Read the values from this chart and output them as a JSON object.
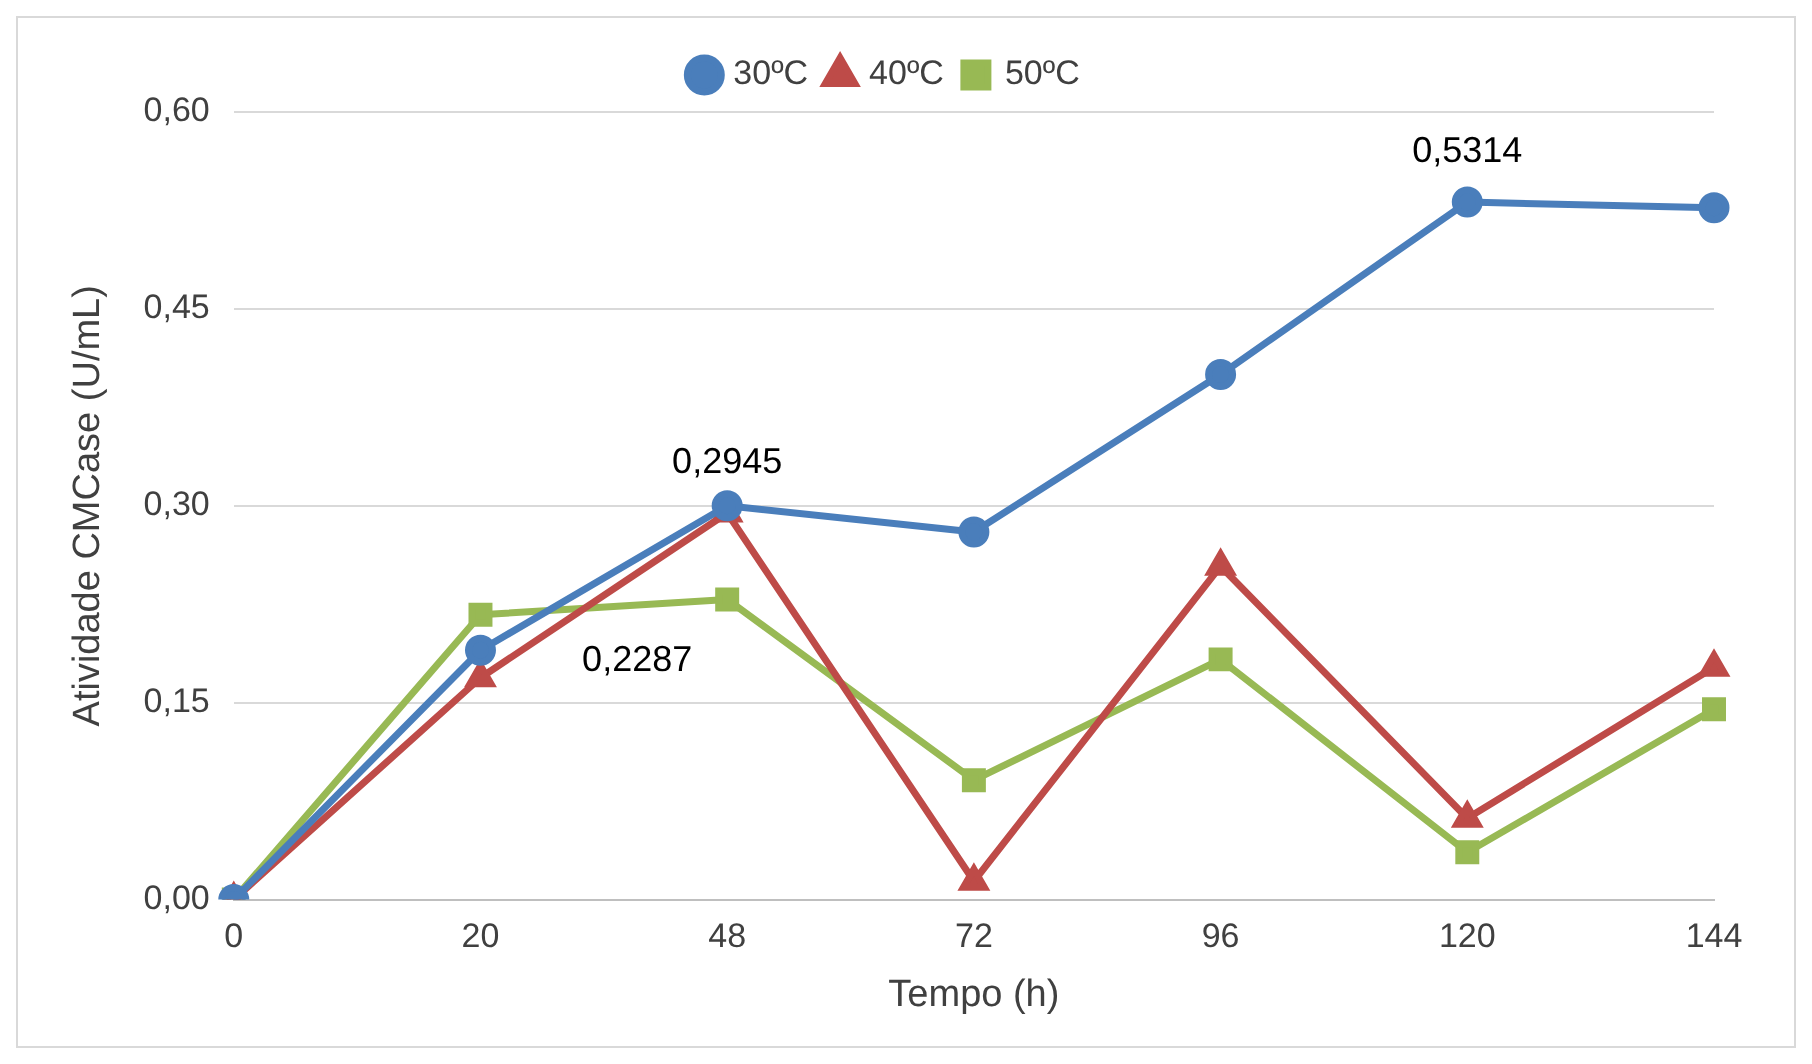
{
  "chart_data": {
    "type": "line",
    "xlabel": "Tempo (h)",
    "ylabel": "Atividade CMCase (U/mL)",
    "categories": [
      "0",
      "20",
      "48",
      "72",
      "96",
      "120",
      "144"
    ],
    "series": [
      {
        "name": "30ºC",
        "color": "#4a7ebb",
        "marker": "circle",
        "values": [
          0,
          0.19,
          0.3,
          0.28,
          0.4,
          0.5314,
          0.527
        ],
        "value_labels": [
          null,
          null,
          null,
          null,
          null,
          "0,5314",
          null
        ]
      },
      {
        "name": "40ºC",
        "color": "#be4b48",
        "marker": "triangle",
        "values": [
          0,
          0.169,
          0.2945,
          0.014,
          0.254,
          0.062,
          0.177
        ],
        "value_labels": [
          null,
          null,
          "0,2945",
          null,
          null,
          null,
          null
        ]
      },
      {
        "name": "50ºC",
        "color": "#98b954",
        "marker": "square",
        "values": [
          0,
          0.217,
          0.2287,
          0.091,
          0.183,
          0.036,
          0.145
        ],
        "value_labels": [
          null,
          null,
          "0,2287",
          null,
          null,
          null,
          null
        ]
      }
    ],
    "ylim": [
      0,
      0.6
    ],
    "yticks": [
      {
        "value": 0,
        "label": "0,00"
      },
      {
        "value": 0.15,
        "label": "0,15"
      },
      {
        "value": 0.3,
        "label": "0,30"
      },
      {
        "value": 0.45,
        "label": "0,45"
      },
      {
        "value": 0.6,
        "label": "0,60"
      }
    ],
    "grid": "y",
    "legend": "top",
    "line_style": "solid"
  }
}
